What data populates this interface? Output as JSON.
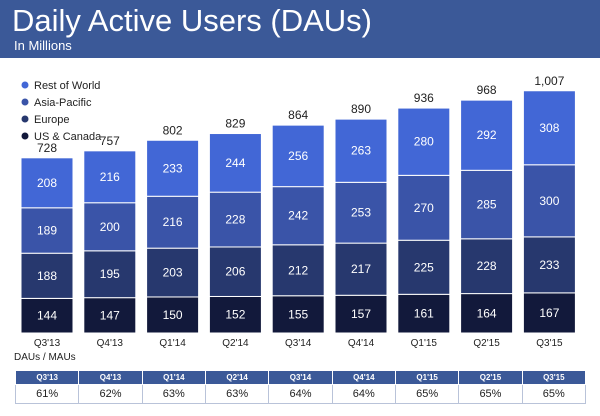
{
  "header": {
    "title": "Daily Active Users (DAUs)",
    "subtitle": "In Millions"
  },
  "colors": {
    "banner": "#3b5998",
    "rest_of_world": "#4267d6",
    "asia_pacific": "#3a54a8",
    "europe": "#27386e",
    "us_canada": "#12193b"
  },
  "chart_data": {
    "type": "bar",
    "stacked": true,
    "categories": [
      "Q3'13",
      "Q4'13",
      "Q1'14",
      "Q2'14",
      "Q3'14",
      "Q4'14",
      "Q1'15",
      "Q2'15",
      "Q3'15"
    ],
    "series": [
      {
        "name": "US & Canada",
        "values": [
          144,
          147,
          150,
          152,
          155,
          157,
          161,
          164,
          167
        ]
      },
      {
        "name": "Europe",
        "values": [
          188,
          195,
          203,
          206,
          212,
          217,
          225,
          228,
          233
        ]
      },
      {
        "name": "Asia-Pacific",
        "values": [
          189,
          200,
          216,
          228,
          242,
          253,
          270,
          285,
          300
        ]
      },
      {
        "name": "Rest of World",
        "values": [
          208,
          216,
          233,
          244,
          256,
          263,
          280,
          292,
          308
        ]
      }
    ],
    "totals": [
      "728",
      "757",
      "802",
      "829",
      "864",
      "890",
      "936",
      "968",
      "1,007"
    ],
    "legend_order": [
      "Rest of World",
      "Asia-Pacific",
      "Europe",
      "US & Canada"
    ],
    "legend_position": "top-left",
    "ylim": [
      0,
      1007
    ],
    "grid": false
  },
  "ratio_table": {
    "label": "DAUs / MAUs",
    "quarters": [
      "Q3'13",
      "Q4'13",
      "Q1'14",
      "Q2'14",
      "Q3'14",
      "Q4'14",
      "Q1'15",
      "Q2'15",
      "Q3'15"
    ],
    "values": [
      "61%",
      "62%",
      "63%",
      "63%",
      "64%",
      "64%",
      "65%",
      "65%",
      "65%"
    ]
  }
}
